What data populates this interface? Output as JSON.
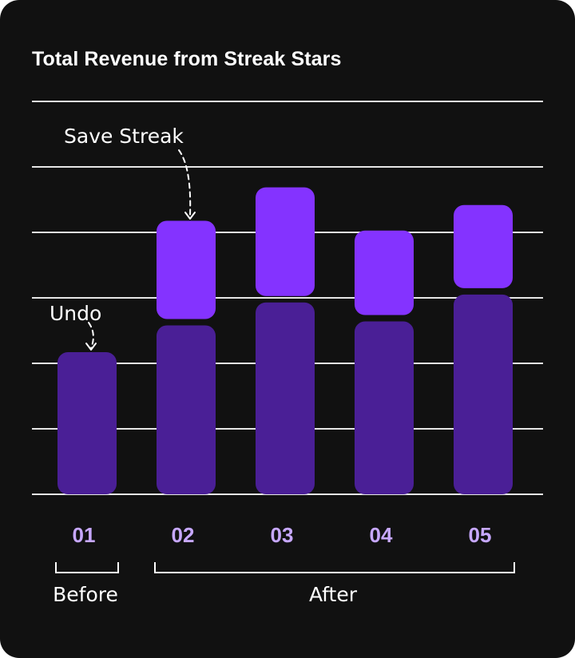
{
  "chart_data": {
    "type": "bar",
    "title": "Total Revenue from Streak Stars",
    "categories": [
      "01",
      "02",
      "03",
      "04",
      "05"
    ],
    "series": [
      {
        "values": [
          2.17,
          2.58,
          2.93,
          2.64,
          3.05
        ]
      },
      {
        "values": [
          0,
          1.5,
          1.66,
          1.29,
          1.27
        ]
      }
    ],
    "ylim": [
      0,
      6
    ],
    "grid": true,
    "annotations": [
      {
        "text": "Undo",
        "category": "01"
      },
      {
        "text": "Save Streak",
        "category": "02"
      }
    ],
    "groups": [
      {
        "label": "Before",
        "categories": [
          "01"
        ]
      },
      {
        "label": "After",
        "categories": [
          "02",
          "03",
          "04",
          "05"
        ]
      }
    ]
  },
  "colors": {
    "background": "#111111",
    "base_bar": "#4a1f96",
    "top_bar": "#8433ff",
    "tick_label": "#c7a8ff",
    "grid": "#e6e6e6",
    "text": "#ffffff"
  }
}
